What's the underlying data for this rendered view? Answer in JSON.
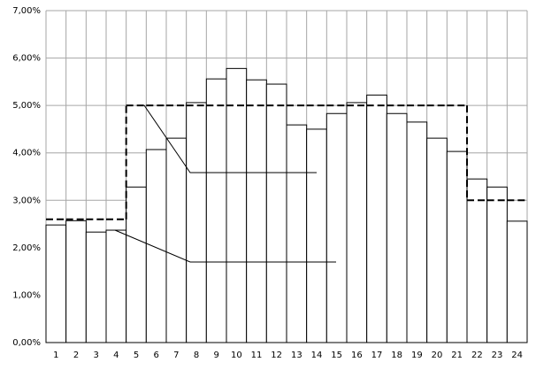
{
  "chart_data": {
    "type": "bar",
    "categories": [
      "1",
      "2",
      "3",
      "4",
      "5",
      "6",
      "7",
      "8",
      "9",
      "10",
      "11",
      "12",
      "13",
      "14",
      "15",
      "16",
      "17",
      "18",
      "19",
      "20",
      "21",
      "22",
      "23",
      "24"
    ],
    "series": [
      {
        "type": "bar",
        "color": "#ffffff",
        "values": [
          2.48,
          2.57,
          2.33,
          2.37,
          3.28,
          4.07,
          4.31,
          5.06,
          5.56,
          5.78,
          5.54,
          5.45,
          4.59,
          4.5,
          4.83,
          5.06,
          5.22,
          4.83,
          4.65,
          4.31,
          4.03,
          3.45,
          3.28,
          2.56
        ]
      },
      {
        "type": "step",
        "color": "#000000",
        "values": [
          2.6,
          2.6,
          2.6,
          2.6,
          5,
          5,
          5,
          5,
          5,
          5,
          5,
          5,
          5,
          5,
          5,
          5,
          5,
          5,
          5,
          5,
          5,
          3,
          3,
          3
        ]
      }
    ],
    "ylim": [
      0,
      7
    ],
    "yticks": [
      {
        "value": 0,
        "label": "0,00%"
      },
      {
        "value": 1,
        "label": "1,00%"
      },
      {
        "value": 2,
        "label": "2,00%"
      },
      {
        "value": 3,
        "label": "3,00%"
      },
      {
        "value": 4,
        "label": "4,00%"
      },
      {
        "value": 5,
        "label": "5,00%"
      },
      {
        "value": 6,
        "label": "6,00%"
      },
      {
        "value": 7,
        "label": "7,00%"
      }
    ],
    "grid": true
  }
}
